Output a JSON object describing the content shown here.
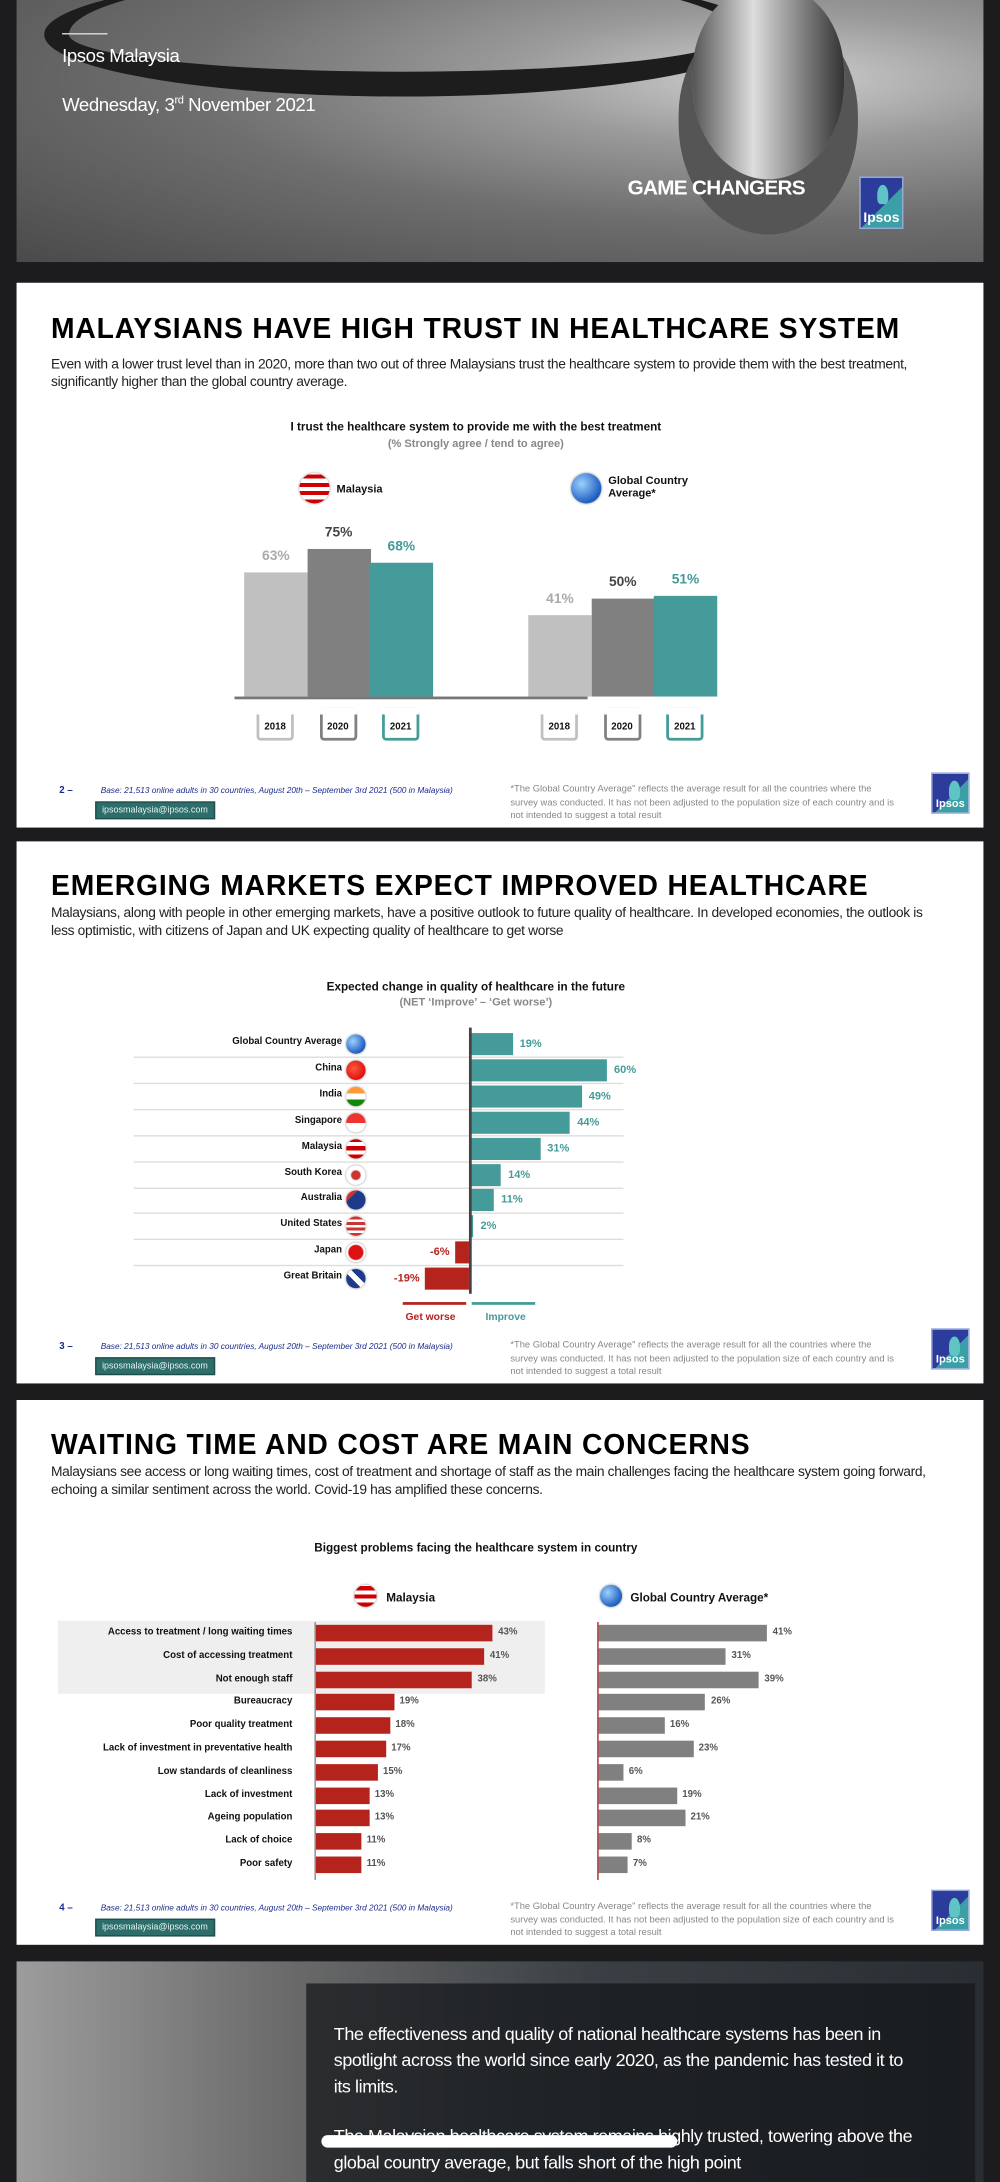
{
  "hero": {
    "org": "Ipsos Malaysia",
    "date_prefix": "Wednesday, 3",
    "date_sup": "rd",
    "date_suffix": " November 2021",
    "tagline": "GAME CHANGERS",
    "logo": "Ipsos"
  },
  "footer": {
    "base": "Base: 21,513 online adults in 30 countries, August 20th – September 3rd 2021 (500 in Malaysia)",
    "email": "ipsosmalaysia@ipsos.com",
    "note": "*The Global Country Average\" reflects the average result for all the countries where the survey was conducted. It has not been adjusted to the population size of each country and is not intended to suggest a total result",
    "logo": "Ipsos"
  },
  "slides": [
    {
      "page": "2 –",
      "title": "MALAYSIANS HAVE HIGH TRUST IN HEALTHCARE SYSTEM",
      "text": "Even with a lower trust level than in 2020, more than two out of three Malaysians trust the healthcare system to provide them with the best treatment, significantly higher than the global country average."
    },
    {
      "page": "3 –",
      "title": "EMERGING MARKETS EXPECT IMPROVED HEALTHCARE",
      "text": "Malaysians, along with people in other emerging markets, have a positive outlook to future quality of healthcare. In developed economies, the outlook is less optimistic, with citizens of Japan and UK expecting quality of healthcare to get worse"
    },
    {
      "page": "4 –",
      "title": "WAITING TIME AND COST ARE MAIN CONCERNS",
      "text": "Malaysians see access or long waiting times, cost of treatment and shortage of staff as the main challenges facing the healthcare system going forward, echoing a similar sentiment across the world. Covid-19 has amplified these concerns."
    }
  ],
  "chart_data": [
    {
      "type": "bar",
      "title": "I trust the healthcare system to provide me with the best treatment",
      "subtitle": "(% Strongly agree / tend to agree)",
      "categories": [
        "2018",
        "2020",
        "2021"
      ],
      "groups": [
        {
          "name": "Malaysia",
          "icon": "malaysia-flag-icon",
          "values": [
            63,
            75,
            68
          ],
          "labels": [
            "63%",
            "75%",
            "68%"
          ]
        },
        {
          "name": "Global Country Average*",
          "icon": "globe-icon",
          "values": [
            41,
            50,
            51
          ],
          "labels": [
            "41%",
            "50%",
            "51%"
          ]
        }
      ],
      "colors": [
        "#c0c0c0",
        "#808080",
        "#449b99"
      ],
      "ylim": [
        0,
        100
      ]
    },
    {
      "type": "bar",
      "orientation": "horizontal",
      "title": "Expected change in quality of healthcare in the future",
      "subtitle": "(NET ‘Improve’ – ‘Get worse’)",
      "categories": [
        "Global Country Average",
        "China",
        "India",
        "Singapore",
        "Malaysia",
        "South Korea",
        "Australia",
        "United States",
        "Japan",
        "Great Britain"
      ],
      "values": [
        19,
        60,
        49,
        44,
        31,
        14,
        11,
        2,
        -6,
        -19
      ],
      "labels": [
        "19%",
        "60%",
        "49%",
        "44%",
        "31%",
        "14%",
        "11%",
        "2%",
        "-6%",
        "-19%"
      ],
      "legend": {
        "negative": "Get worse",
        "positive": "Improve"
      },
      "colors": {
        "positive": "#449b99",
        "negative": "#b5231d"
      }
    },
    {
      "type": "bar",
      "orientation": "horizontal",
      "title": "Biggest problems facing the healthcare system in country",
      "categories": [
        "Access to treatment / long waiting times",
        "Cost of accessing treatment",
        "Not enough staff",
        "Bureaucracy",
        "Poor quality treatment",
        "Lack of investment in preventative health",
        "Low standards of cleanliness",
        "Lack of investment",
        "Ageing population",
        "Lack of choice",
        "Poor safety"
      ],
      "series": [
        {
          "name": "Malaysia",
          "icon": "malaysia-flag-icon",
          "color": "#b5231d",
          "values": [
            43,
            41,
            38,
            19,
            18,
            17,
            15,
            13,
            13,
            11,
            11
          ]
        },
        {
          "name": "Global Country Average*",
          "icon": "globe-icon",
          "color": "#808080",
          "values": [
            41,
            31,
            39,
            26,
            16,
            23,
            6,
            19,
            21,
            8,
            7
          ]
        }
      ]
    }
  ],
  "closing": {
    "p1": "The effectiveness and quality of national healthcare systems has been in spotlight across the world since early 2020, as the pandemic has tested it to its limits.",
    "p2": "The Malaysian healthcare system remains highly trusted, towering above the global country average, but falls short of the high point"
  }
}
